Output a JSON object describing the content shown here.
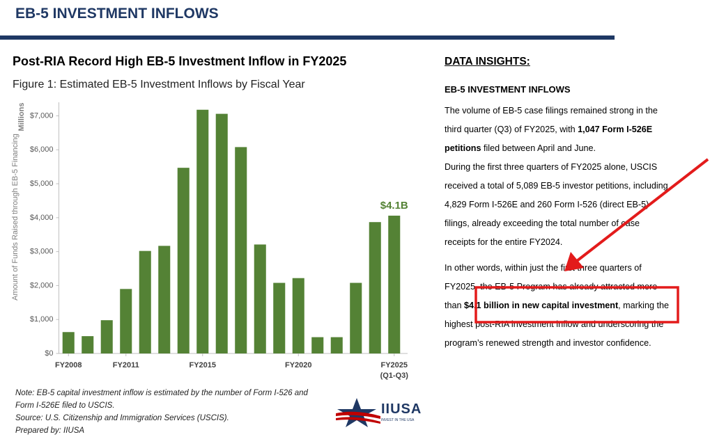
{
  "header": {
    "title": "EB-5 INVESTMENT INFLOWS"
  },
  "chart_data": {
    "type": "bar",
    "title": "Post-RIA Record High EB-5 Investment Inflow in FY2025",
    "subtitle": "Figure 1: Estimated EB-5 Investment Inflows by Fiscal Year",
    "y_label": "Amount of Funds Raised through EB-5 Financing",
    "y_unit": "Millions",
    "categories": [
      "FY2008",
      null,
      null,
      "FY2011",
      null,
      null,
      null,
      "FY2015",
      null,
      null,
      null,
      null,
      "FY2020",
      null,
      null,
      null,
      null,
      "FY2025 (Q1-Q3)"
    ],
    "values": [
      630,
      510,
      980,
      1900,
      3020,
      3170,
      5470,
      7180,
      7060,
      6080,
      3210,
      2080,
      2220,
      480,
      480,
      2080,
      3870,
      4060
    ],
    "value_labels": [
      null,
      null,
      null,
      null,
      null,
      null,
      null,
      null,
      null,
      null,
      null,
      null,
      null,
      null,
      null,
      null,
      null,
      "$4.1B"
    ],
    "color": "#548235",
    "ylim": [
      0,
      7400
    ],
    "yticks": [
      {
        "value": 0,
        "label": "$0"
      },
      {
        "value": 1000,
        "label": "$1,000"
      },
      {
        "value": 2000,
        "label": "$2,000"
      },
      {
        "value": 3000,
        "label": "$3,000"
      },
      {
        "value": 4000,
        "label": "$4,000"
      },
      {
        "value": 5000,
        "label": "$5,000"
      },
      {
        "value": 6000,
        "label": "$6,000"
      },
      {
        "value": 7000,
        "label": "$7,000"
      }
    ],
    "grid": false
  },
  "notes": [
    "Note: EB-5 capital investment inflow is estimated by the number of Form I-526 and",
    "Form I-526E filed to USCIS.",
    "Source: U.S. Citizenship and Immigration Services (USCIS).",
    "Prepared by: IIUSA"
  ],
  "logo": {
    "name": "IIUSA",
    "tagline": "INVEST IN THE USA"
  },
  "insights": {
    "title": "DATA INSIGHTS:",
    "heading": "EB-5 INVESTMENT INFLOWS",
    "paragraphs": [
      [
        {
          "text": "The volume of EB-5 case filings remained strong in the third quarter (Q3) of FY2025, with ",
          "bold": false
        },
        {
          "text": "1,047 Form I-526E petitions",
          "bold": true
        },
        {
          "text": " filed between April and June.",
          "bold": false
        }
      ],
      [
        {
          "text": "During the first three quarters of FY2025 alone, USCIS received a total of 5,089 EB-5 investor petitions, including 4,829 Form I-526E and 260 Form I-526  (direct EB-5) filings, already exceeding the total number of case receipts for the entire FY2024.",
          "bold": false
        }
      ],
      [
        {
          "text": "In other words, within just the first three quarters of FY2025, the EB-5 Program has already attracted more than ",
          "bold": false
        },
        {
          "text": "$4.1 billion in new capital investment",
          "bold": true
        },
        {
          "text": ", marking the highest post-RIA investment inflow and underscoring the program’s renewed strength and investor confidence.",
          "bold": false
        }
      ]
    ]
  }
}
